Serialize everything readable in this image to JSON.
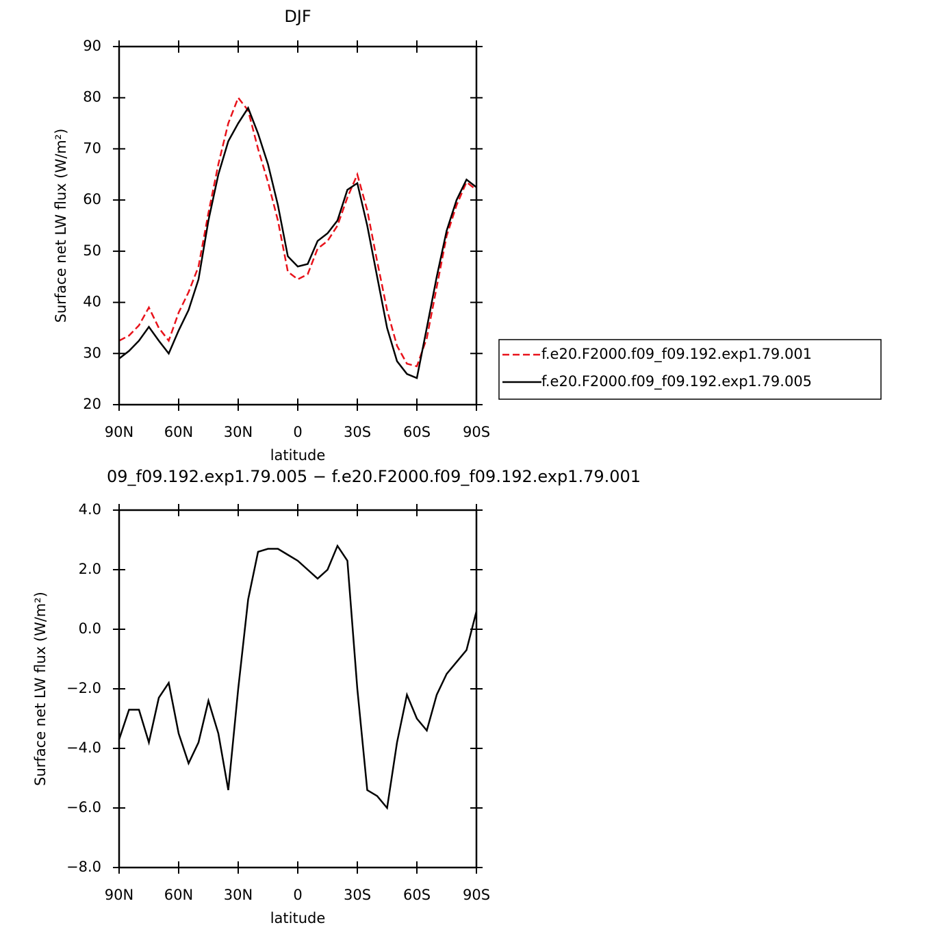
{
  "chart_data": [
    {
      "type": "line",
      "title": "DJF",
      "xlabel": "latitude",
      "ylabel": "Surface net LW flux (W/m²)",
      "x": [
        90,
        85,
        80,
        75,
        70,
        65,
        60,
        55,
        50,
        45,
        40,
        35,
        30,
        25,
        20,
        15,
        10,
        5,
        0,
        -5,
        -10,
        -15,
        -20,
        -25,
        -30,
        -35,
        -40,
        -45,
        -50,
        -55,
        -60,
        -65,
        -70,
        -75,
        -80,
        -85,
        -90
      ],
      "series": [
        {
          "name": "f.e20.F2000.f09_f09.192.exp1.79.001",
          "color": "#e8121a",
          "style": "dashed",
          "values": [
            32.5,
            33.5,
            35.5,
            39,
            35,
            32.5,
            38,
            42,
            47,
            57.5,
            67,
            75,
            80,
            77.5,
            70,
            63.5,
            56,
            46,
            44.5,
            45.5,
            50.5,
            52,
            55,
            60.5,
            65,
            58,
            48,
            38.5,
            31.5,
            28,
            27.5,
            33,
            43,
            53,
            59,
            63.5,
            62
          ]
        },
        {
          "name": "f.e20.F2000.f09_f09.192.exp1.79.005",
          "color": "#000000",
          "style": "solid",
          "values": [
            29,
            30.5,
            32.5,
            35.2,
            32.5,
            30,
            34.5,
            38.5,
            44.5,
            56,
            65,
            71.5,
            75,
            78,
            73,
            67,
            59,
            49,
            47,
            47.5,
            52,
            53.5,
            56,
            62,
            63.3,
            55,
            45,
            35,
            28.5,
            26,
            25.2,
            35,
            45,
            54,
            60,
            64,
            62.5
          ]
        }
      ],
      "xlim": [
        90,
        -90
      ],
      "xticks": [
        {
          "value": 90,
          "label": "90N"
        },
        {
          "value": 60,
          "label": "60N"
        },
        {
          "value": 30,
          "label": "30N"
        },
        0,
        {
          "value": -30,
          "label": "30S"
        },
        {
          "value": -60,
          "label": "60S"
        },
        {
          "value": -90,
          "label": "90S"
        }
      ],
      "ylim": [
        20,
        90
      ],
      "yticks": [
        20,
        30,
        40,
        50,
        60,
        70,
        80,
        90
      ],
      "legend": "right"
    },
    {
      "type": "line",
      "title": "09_f09.192.exp1.79.005 − f.e20.F2000.f09_f09.192.exp1.79.001",
      "xlabel": "latitude",
      "ylabel": "Surface net LW flux (W/m²)",
      "x": [
        90,
        85,
        80,
        75,
        70,
        65,
        60,
        55,
        50,
        45,
        40,
        35,
        30,
        25,
        20,
        15,
        10,
        5,
        0,
        -5,
        -10,
        -15,
        -20,
        -25,
        -30,
        -35,
        -40,
        -45,
        -50,
        -55,
        -60,
        -65,
        -70,
        -75,
        -80,
        -85,
        -90
      ],
      "values": [
        -3.7,
        -2.7,
        -2.7,
        -3.8,
        -2.3,
        -1.8,
        -3.5,
        -4.5,
        -3.8,
        -2.4,
        -3.5,
        -5.4,
        -2,
        1,
        2.6,
        2.7,
        2.7,
        2.5,
        2.3,
        2.0,
        1.7,
        2.0,
        2.8,
        2.3,
        -2,
        -5.4,
        -5.6,
        -6.0,
        -3.8,
        -2.2,
        -3.0,
        -3.4,
        -2.2,
        -1.5,
        -1.1,
        -0.7,
        0.6
      ],
      "color": "#000000",
      "xlim": [
        90,
        -90
      ],
      "xticks": [
        {
          "value": 90,
          "label": "90N"
        },
        {
          "value": 60,
          "label": "60N"
        },
        {
          "value": 30,
          "label": "30N"
        },
        0,
        {
          "value": -30,
          "label": "30S"
        },
        {
          "value": -60,
          "label": "60S"
        },
        {
          "value": -90,
          "label": "90S"
        }
      ],
      "ylim": [
        -8,
        4
      ],
      "yticks": [
        {
          "value": -8,
          "label": "−8.0"
        },
        {
          "value": -6,
          "label": "−6.0"
        },
        {
          "value": -4,
          "label": "−4.0"
        },
        {
          "value": -2,
          "label": "−2.0"
        },
        {
          "value": 0,
          "label": "0.0"
        },
        {
          "value": 2,
          "label": "2.0"
        },
        {
          "value": 4,
          "label": "4.0"
        }
      ]
    }
  ]
}
